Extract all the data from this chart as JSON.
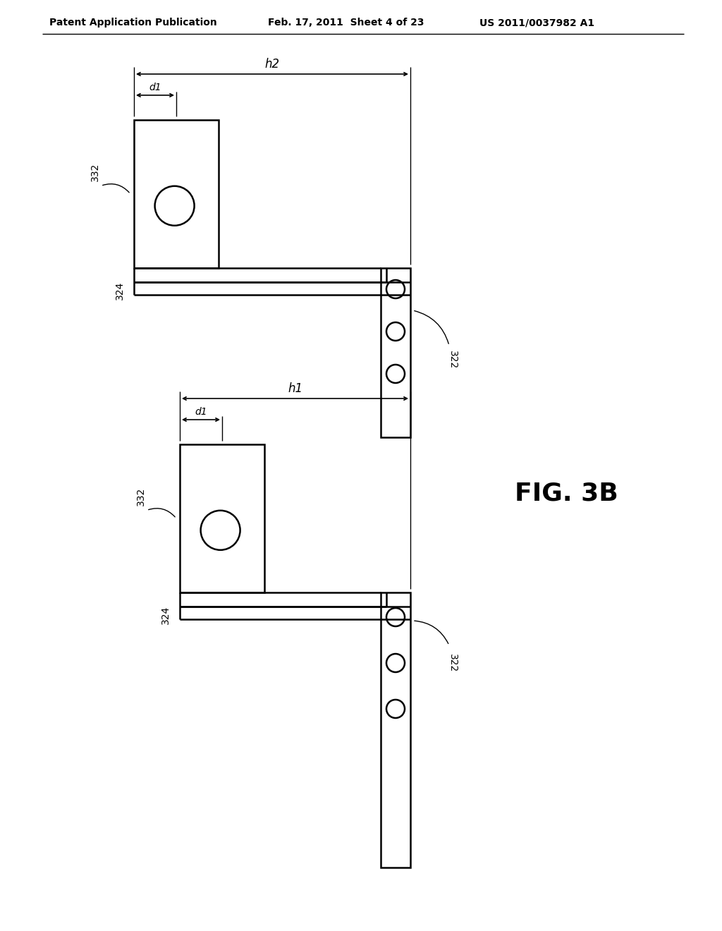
{
  "bg_color": "#ffffff",
  "line_color": "#000000",
  "header_text": "Patent Application Publication",
  "header_date": "Feb. 17, 2011  Sheet 4 of 23",
  "header_patent": "US 2011/0037982 A1",
  "fig_label": "FIG. 3B",
  "lw_main": 1.8,
  "lw_dim": 1.2,
  "lw_thin": 1.0
}
